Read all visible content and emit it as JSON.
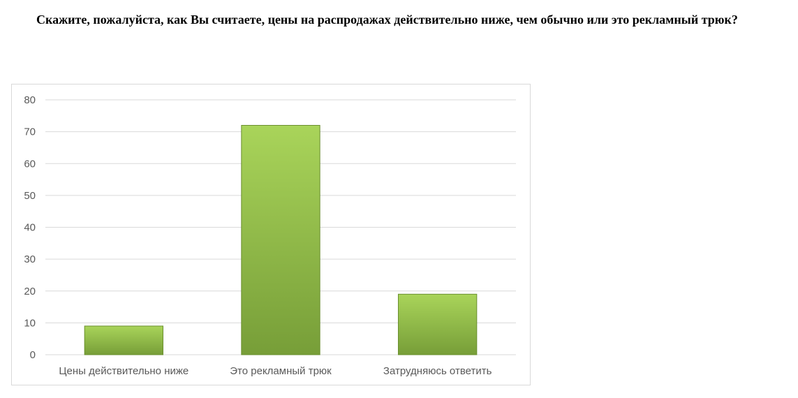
{
  "question": {
    "text": "Скажите, пожалуйста, как Вы считаете, цены на распродажах действительно ниже, чем обычно или это рекламный трюк?"
  },
  "chart_data": {
    "type": "bar",
    "categories": [
      "Цены действительно ниже",
      "Это рекламный трюк",
      "Затрудняюсь ответить"
    ],
    "values": [
      9,
      72,
      19
    ],
    "ylim": [
      0,
      80
    ],
    "yticks": [
      0,
      10,
      20,
      30,
      40,
      50,
      60,
      70,
      80
    ],
    "grid": true,
    "legend": "none",
    "colors": {
      "bar_light": "#a9d45a",
      "bar_dark": "#779e38",
      "bar_edge": "#6a8f2e",
      "grid": "#d9d9d9",
      "axis_text": "#595959"
    }
  }
}
